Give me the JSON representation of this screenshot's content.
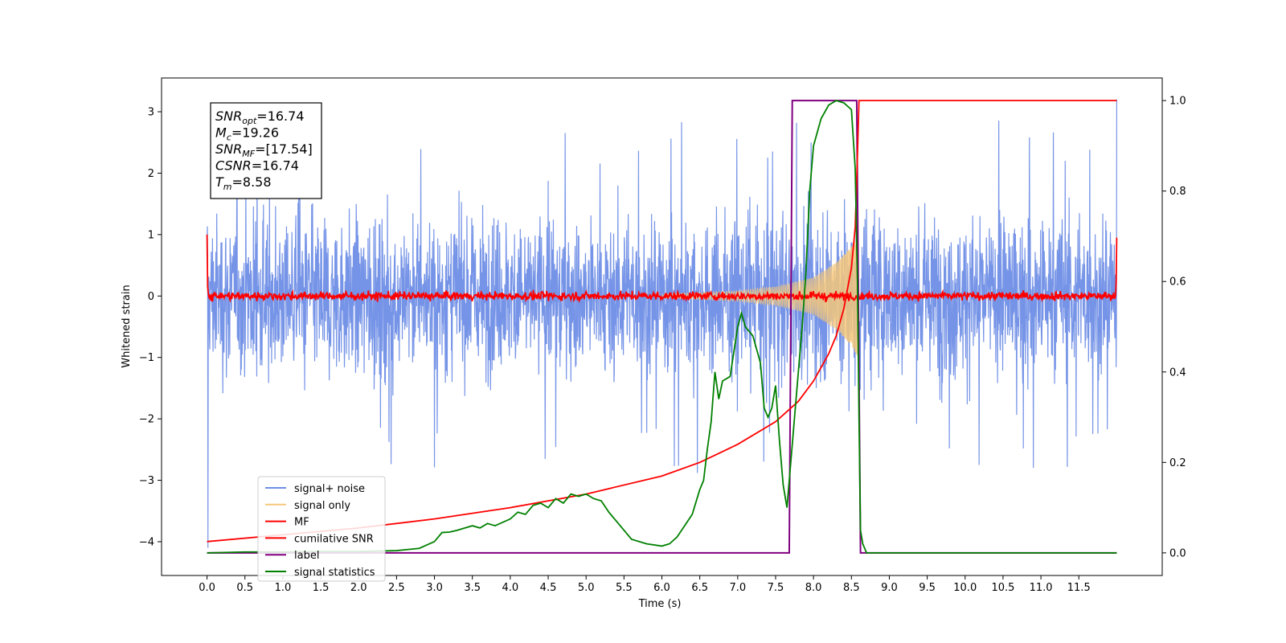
{
  "chart_data": {
    "type": "line",
    "xlabel": "Time (s)",
    "ylabel": "Whitened strain",
    "xlim": [
      -0.6,
      12.6
    ],
    "ylim": [
      -4.55,
      3.55
    ],
    "y2lim": [
      -0.05,
      1.05
    ],
    "x_ticks": [
      0.0,
      0.5,
      1.0,
      1.5,
      2.0,
      2.5,
      3.0,
      3.5,
      4.0,
      4.5,
      5.0,
      5.5,
      6.0,
      6.5,
      7.0,
      7.5,
      8.0,
      8.5,
      9.0,
      9.5,
      10.0,
      10.5,
      11.0,
      11.5
    ],
    "x_tick_labels": [
      "0.0",
      "0.5",
      "1.0",
      "1.5",
      "2.0",
      "2.5",
      "3.0",
      "3.5",
      "4.0",
      "4.5",
      "5.0",
      "5.5",
      "6.0",
      "6.5",
      "7.0",
      "7.5",
      "8.0",
      "8.5",
      "9.0",
      "9.5",
      "10.0",
      "10.5",
      "11.0",
      "11.5"
    ],
    "y_ticks": [
      3,
      2,
      1,
      0,
      -1,
      -2,
      -3,
      -4
    ],
    "y_tick_labels": [
      "3",
      "2",
      "1",
      "0",
      "−1",
      "−2",
      "−3",
      "−4"
    ],
    "y2_ticks": [
      1.0,
      0.8,
      0.6,
      0.4,
      0.2,
      0.0
    ],
    "y2_tick_labels": [
      "1.0",
      "0.8",
      "0.6",
      "0.4",
      "0.2",
      "0.0"
    ],
    "legend_position": "lower-left",
    "series": [
      {
        "name": "signal+ noise",
        "color": "#6f8ee6",
        "axis": "left",
        "kind": "noise_band",
        "x_range": [
          0.0,
          12.0
        ],
        "envelope_x": [
          0.0,
          2.0,
          4.0,
          6.0,
          7.5,
          8.0,
          8.5,
          9.0,
          12.0
        ],
        "envelope_upper": [
          1.6,
          1.6,
          1.6,
          1.6,
          1.7,
          1.8,
          2.0,
          1.7,
          1.6
        ],
        "envelope_lower": [
          -1.6,
          -1.6,
          -1.6,
          -1.6,
          -1.7,
          -1.8,
          -2.0,
          -1.7,
          -1.6
        ],
        "peak_max": 3.2,
        "peak_min": -4.1
      },
      {
        "name": "signal only",
        "color": "#f5c77a",
        "axis": "left",
        "kind": "chirp",
        "envelope_x": [
          6.0,
          7.0,
          7.5,
          8.0,
          8.3,
          8.5,
          8.58
        ],
        "envelope": [
          0.03,
          0.08,
          0.15,
          0.3,
          0.55,
          0.8,
          1.0
        ]
      },
      {
        "name": "MF",
        "color": "#ff0000",
        "axis": "left",
        "kind": "noise_line",
        "x_range": [
          0.0,
          12.0
        ],
        "start_value": 1.0,
        "end_value": 0.95,
        "amplitude": 0.06
      },
      {
        "name": "cumilative SNR",
        "color": "#ff0000",
        "axis": "right",
        "x": [
          0.0,
          1.0,
          2.0,
          3.0,
          4.0,
          5.0,
          6.0,
          6.5,
          7.0,
          7.5,
          7.8,
          8.0,
          8.2,
          8.3,
          8.4,
          8.5,
          8.55,
          8.58,
          8.6,
          12.0
        ],
        "y": [
          0.025,
          0.04,
          0.055,
          0.075,
          0.1,
          0.13,
          0.17,
          0.2,
          0.24,
          0.29,
          0.335,
          0.38,
          0.44,
          0.48,
          0.54,
          0.63,
          0.72,
          0.88,
          1.0,
          1.0
        ]
      },
      {
        "name": "label",
        "color": "#800080",
        "axis": "right",
        "x": [
          0.0,
          7.68,
          7.72,
          8.57,
          8.62,
          12.0
        ],
        "y": [
          0.0,
          0.0,
          1.0,
          1.0,
          0.0,
          0.0
        ]
      },
      {
        "name": "signal statistics",
        "color": "#008000",
        "axis": "right",
        "x": [
          0.0,
          0.5,
          1.0,
          1.5,
          2.0,
          2.5,
          2.8,
          3.0,
          3.1,
          3.2,
          3.3,
          3.5,
          3.6,
          3.7,
          3.8,
          4.0,
          4.1,
          4.2,
          4.3,
          4.4,
          4.5,
          4.6,
          4.7,
          4.8,
          4.9,
          5.0,
          5.1,
          5.2,
          5.3,
          5.4,
          5.5,
          5.6,
          5.8,
          6.0,
          6.1,
          6.2,
          6.3,
          6.4,
          6.5,
          6.55,
          6.6,
          6.65,
          6.7,
          6.75,
          6.8,
          6.9,
          7.0,
          7.05,
          7.1,
          7.2,
          7.3,
          7.35,
          7.4,
          7.45,
          7.5,
          7.55,
          7.6,
          7.65,
          7.7,
          7.75,
          7.8,
          7.85,
          7.9,
          7.95,
          8.0,
          8.05,
          8.1,
          8.2,
          8.3,
          8.4,
          8.5,
          8.55,
          8.58,
          8.6,
          8.62,
          8.65,
          8.7,
          9.0,
          12.0
        ],
        "y": [
          0.0,
          0.002,
          0.002,
          0.003,
          0.003,
          0.005,
          0.01,
          0.025,
          0.045,
          0.046,
          0.05,
          0.06,
          0.055,
          0.065,
          0.06,
          0.075,
          0.09,
          0.085,
          0.105,
          0.11,
          0.1,
          0.12,
          0.11,
          0.13,
          0.125,
          0.13,
          0.12,
          0.115,
          0.09,
          0.07,
          0.05,
          0.03,
          0.02,
          0.015,
          0.02,
          0.035,
          0.06,
          0.085,
          0.14,
          0.16,
          0.23,
          0.29,
          0.4,
          0.34,
          0.38,
          0.39,
          0.5,
          0.53,
          0.5,
          0.48,
          0.42,
          0.32,
          0.3,
          0.32,
          0.37,
          0.25,
          0.15,
          0.1,
          0.2,
          0.3,
          0.4,
          0.5,
          0.62,
          0.8,
          0.9,
          0.93,
          0.96,
          0.99,
          1.0,
          0.995,
          0.98,
          0.85,
          0.6,
          0.3,
          0.05,
          0.02,
          0.0,
          0.0,
          0.0
        ]
      }
    ]
  },
  "stats_box": {
    "lines": [
      {
        "sym": "SNR",
        "sub": "opt",
        "value": "=16.74"
      },
      {
        "sym": "M",
        "sub": "c",
        "value": "=19.26"
      },
      {
        "sym": "SNR",
        "sub": "MF",
        "value": "=[17.54]"
      },
      {
        "sym": "CSNR",
        "sub": "",
        "value": "=16.74"
      },
      {
        "sym": "T",
        "sub": "m",
        "value": "=8.58"
      }
    ]
  }
}
